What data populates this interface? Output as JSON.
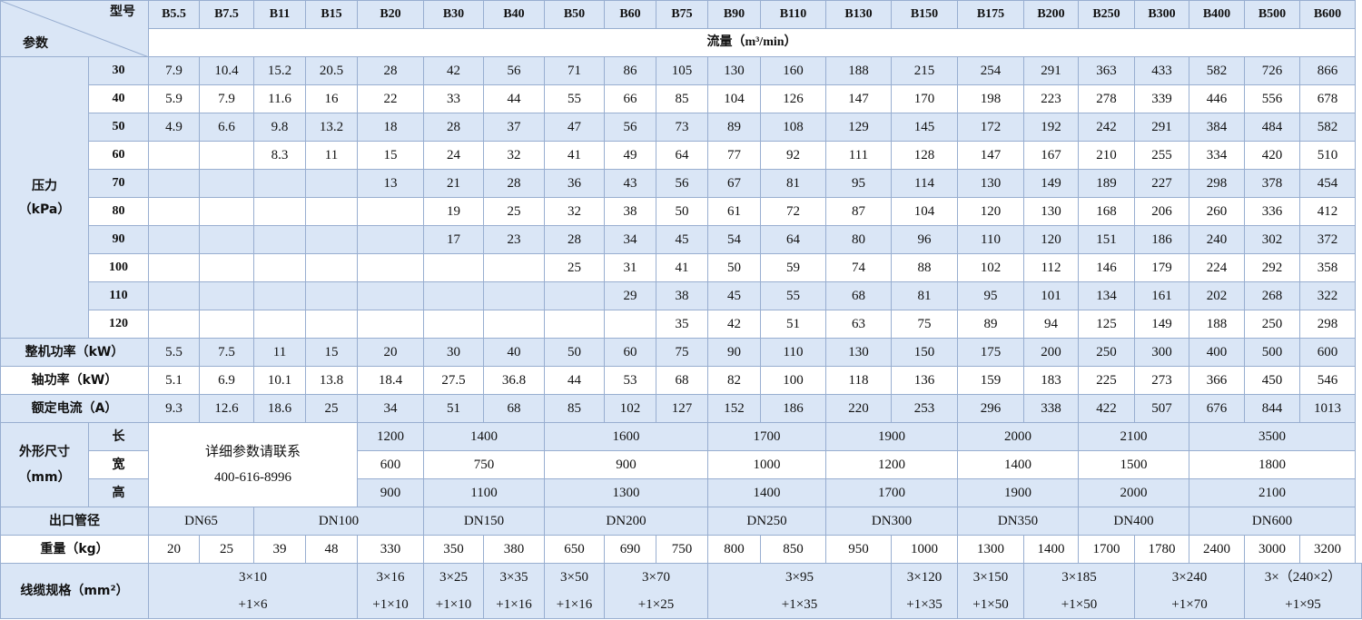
{
  "corner": {
    "top_right": "型号",
    "bottom_left": "参数"
  },
  "models": [
    "B5.5",
    "B7.5",
    "B11",
    "B15",
    "B20",
    "B30",
    "B40",
    "B50",
    "B60",
    "B75",
    "B90",
    "B110",
    "B130",
    "B150",
    "B175",
    "B200",
    "B250",
    "B300",
    "B400",
    "B500",
    "B600"
  ],
  "flow_header": "流量（m³/min）",
  "pressure_label": [
    "压力",
    "（kPa）"
  ],
  "pressures": [
    "30",
    "40",
    "50",
    "60",
    "70",
    "80",
    "90",
    "100",
    "110",
    "120"
  ],
  "flow": [
    [
      "7.9",
      "10.4",
      "15.2",
      "20.5",
      "28",
      "42",
      "56",
      "71",
      "86",
      "105",
      "130",
      "160",
      "188",
      "215",
      "254",
      "291",
      "363",
      "433",
      "582",
      "726",
      "866"
    ],
    [
      "5.9",
      "7.9",
      "11.6",
      "16",
      "22",
      "33",
      "44",
      "55",
      "66",
      "85",
      "104",
      "126",
      "147",
      "170",
      "198",
      "223",
      "278",
      "339",
      "446",
      "556",
      "678"
    ],
    [
      "4.9",
      "6.6",
      "9.8",
      "13.2",
      "18",
      "28",
      "37",
      "47",
      "56",
      "73",
      "89",
      "108",
      "129",
      "145",
      "172",
      "192",
      "242",
      "291",
      "384",
      "484",
      "582"
    ],
    [
      "",
      "",
      "8.3",
      "11",
      "15",
      "24",
      "32",
      "41",
      "49",
      "64",
      "77",
      "92",
      "111",
      "128",
      "147",
      "167",
      "210",
      "255",
      "334",
      "420",
      "510"
    ],
    [
      "",
      "",
      "",
      "",
      "13",
      "21",
      "28",
      "36",
      "43",
      "56",
      "67",
      "81",
      "95",
      "114",
      "130",
      "149",
      "189",
      "227",
      "298",
      "378",
      "454"
    ],
    [
      "",
      "",
      "",
      "",
      "",
      "19",
      "25",
      "32",
      "38",
      "50",
      "61",
      "72",
      "87",
      "104",
      "120",
      "130",
      "168",
      "206",
      "260",
      "336",
      "412"
    ],
    [
      "",
      "",
      "",
      "",
      "",
      "17",
      "23",
      "28",
      "34",
      "45",
      "54",
      "64",
      "80",
      "96",
      "110",
      "120",
      "151",
      "186",
      "240",
      "302",
      "372"
    ],
    [
      "",
      "",
      "",
      "",
      "",
      "",
      "",
      "25",
      "31",
      "41",
      "50",
      "59",
      "74",
      "88",
      "102",
      "112",
      "146",
      "179",
      "224",
      "292",
      "358"
    ],
    [
      "",
      "",
      "",
      "",
      "",
      "",
      "",
      "",
      "29",
      "38",
      "45",
      "55",
      "68",
      "81",
      "95",
      "101",
      "134",
      "161",
      "202",
      "268",
      "322"
    ],
    [
      "",
      "",
      "",
      "",
      "",
      "",
      "",
      "",
      "",
      "35",
      "42",
      "51",
      "63",
      "75",
      "89",
      "94",
      "125",
      "149",
      "188",
      "250",
      "298"
    ]
  ],
  "power": {
    "label": "整机功率（kW）",
    "values": [
      "5.5",
      "7.5",
      "11",
      "15",
      "20",
      "30",
      "40",
      "50",
      "60",
      "75",
      "90",
      "110",
      "130",
      "150",
      "175",
      "200",
      "250",
      "300",
      "400",
      "500",
      "600"
    ]
  },
  "shaft": {
    "label": "轴功率（kW）",
    "values": [
      "5.1",
      "6.9",
      "10.1",
      "13.8",
      "18.4",
      "27.5",
      "36.8",
      "44",
      "53",
      "68",
      "82",
      "100",
      "118",
      "136",
      "159",
      "183",
      "225",
      "273",
      "366",
      "450",
      "546"
    ]
  },
  "current": {
    "label": "额定电流（A）",
    "values": [
      "9.3",
      "12.6",
      "18.6",
      "25",
      "34",
      "51",
      "68",
      "85",
      "102",
      "127",
      "152",
      "186",
      "220",
      "253",
      "296",
      "338",
      "422",
      "507",
      "676",
      "844",
      "1013"
    ]
  },
  "dims": {
    "label": [
      "外形尺寸",
      "（mm）"
    ],
    "contact": [
      "详细参数请联系",
      "400-616-8996"
    ],
    "rows": [
      {
        "name": "长",
        "values": [
          "1200",
          "1400",
          "1600",
          "1700",
          "1900",
          "2000",
          "2100",
          "3500"
        ]
      },
      {
        "name": "宽",
        "values": [
          "600",
          "750",
          "900",
          "1000",
          "1200",
          "1400",
          "1500",
          "1800"
        ]
      },
      {
        "name": "高",
        "values": [
          "900",
          "1100",
          "1300",
          "1400",
          "1700",
          "1900",
          "2000",
          "2100"
        ]
      }
    ]
  },
  "outlet": {
    "label": "出口管径",
    "values": [
      "DN65",
      "DN100",
      "DN150",
      "DN200",
      "DN250",
      "DN300",
      "DN350",
      "DN400",
      "DN600"
    ]
  },
  "weight": {
    "label": "重量（kg）",
    "values": [
      "20",
      "25",
      "39",
      "48",
      "330",
      "350",
      "380",
      "650",
      "690",
      "750",
      "800",
      "850",
      "950",
      "1000",
      "1300",
      "1400",
      "1700",
      "1780",
      "2400",
      "3000",
      "3200"
    ]
  },
  "cable": {
    "label": "线缆规格（mm²）",
    "values": [
      [
        "3×10",
        "+1×6"
      ],
      [
        "3×16",
        "+1×10"
      ],
      [
        "3×25",
        "+1×10"
      ],
      [
        "3×35",
        "+1×16"
      ],
      [
        "3×50",
        "+1×16"
      ],
      [
        "3×70",
        "+1×25"
      ],
      [
        "3×95",
        "+1×35"
      ],
      [
        "3×120",
        "+1×35"
      ],
      [
        "3×150",
        "+1×50"
      ],
      [
        "3×185",
        "+1×50"
      ],
      [
        "3×240",
        "+1×70"
      ],
      [
        "3×（240×2）",
        "+1×95"
      ]
    ]
  },
  "colors": {
    "band": "#dae6f6",
    "border": "#98aed0"
  }
}
